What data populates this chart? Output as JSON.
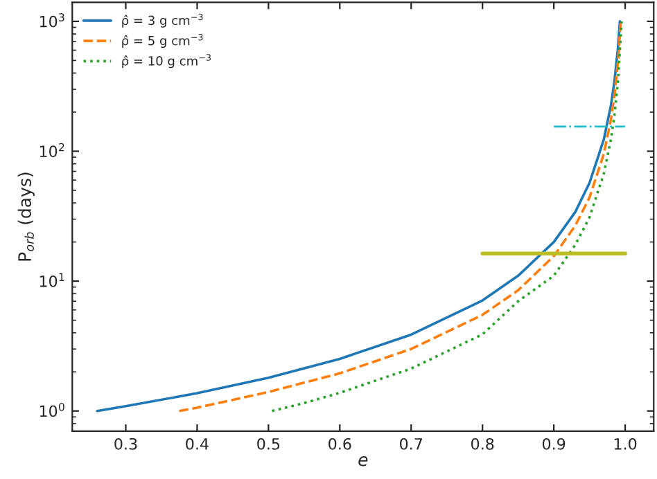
{
  "chart_data": {
    "type": "line",
    "xlabel": "e",
    "ylabel": "P$_{orb}$ (days)",
    "log": "y",
    "xlim": [
      0.225,
      1.04
    ],
    "ylim": [
      0.7,
      1400
    ],
    "xticks": [
      0.3,
      0.4,
      0.5,
      0.6,
      0.7,
      0.8,
      0.9,
      {
        "value": 1.0,
        "label": "1.0"
      }
    ],
    "yticks": [
      {
        "value": 1,
        "label": "10$^{0}$"
      },
      {
        "value": 10,
        "label": "10$^{1}$"
      },
      {
        "value": 100,
        "label": "10$^{2}$"
      },
      {
        "value": 1000,
        "label": "10$^{3}$"
      }
    ],
    "grid": false,
    "legend": "top left",
    "marker": "none",
    "series": [
      {
        "name": "ρ̂ = 3 g cm$^{−3}$",
        "color": "#1f77b4",
        "line_style": "solid",
        "x": [
          0.26,
          0.3,
          0.4,
          0.5,
          0.6,
          0.7,
          0.8,
          0.85,
          0.9,
          0.93,
          0.95,
          0.97,
          0.98,
          0.985,
          0.99,
          0.9926
        ],
        "values": [
          1,
          1.09,
          1.37,
          1.8,
          2.52,
          3.87,
          7.1,
          11,
          20,
          34,
          57,
          123,
          225,
          346,
          637,
          1000
        ]
      },
      {
        "name": "ρ̂ = 5 g cm$^{−3}$",
        "color": "#ff7f0e",
        "line_style": "dashed",
        "x": [
          0.375,
          0.4,
          0.5,
          0.6,
          0.7,
          0.8,
          0.85,
          0.9,
          0.93,
          0.95,
          0.97,
          0.98,
          0.985,
          0.99,
          0.9937
        ],
        "values": [
          1,
          1.06,
          1.4,
          1.95,
          3.0,
          5.5,
          8.5,
          15.6,
          26.7,
          44,
          95,
          175,
          269,
          494,
          1000
        ]
      },
      {
        "name": "ρ̂ = 10 g cm$^{−3}$",
        "color": "#2ca02c",
        "line_style": "dotted",
        "x": [
          0.505,
          0.55,
          0.6,
          0.7,
          0.8,
          0.85,
          0.9,
          0.93,
          0.95,
          0.97,
          0.98,
          0.985,
          0.99,
          0.995
        ],
        "values": [
          1,
          1.15,
          1.38,
          2.12,
          3.89,
          7.0,
          11,
          19,
          31,
          67,
          123,
          190,
          350,
          1000
        ]
      },
      {
        "color": "#bcbd22",
        "line_style": "solid",
        "x": [
          0.8,
          1.0
        ],
        "values": [
          16.3,
          16.3
        ]
      },
      {
        "color": "#17becf",
        "line_style": "dashdot",
        "x": [
          0.9,
          1.0
        ],
        "values": [
          155,
          155
        ]
      }
    ]
  }
}
